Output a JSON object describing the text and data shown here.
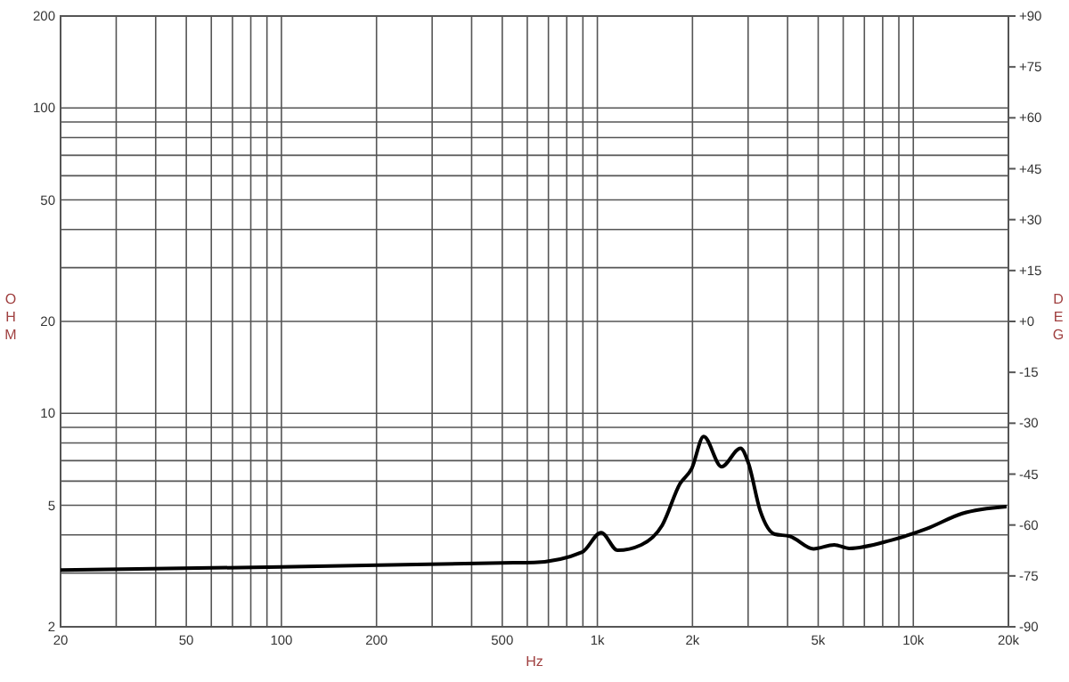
{
  "chart_data": {
    "type": "line",
    "xlabel": "Hz",
    "ylabel": "OHM",
    "y2label": "DEG",
    "log": "xy",
    "grid": true,
    "marker": "none",
    "line_style": "solid",
    "xlim": [
      20,
      20000
    ],
    "ylim": [
      2,
      200
    ],
    "y2lim": [
      -90,
      90
    ],
    "xticks": [
      20,
      {
        "value": 30,
        "label": null
      },
      {
        "value": 40,
        "label": null
      },
      50,
      {
        "value": 60,
        "label": null
      },
      {
        "value": 70,
        "label": null
      },
      {
        "value": 80,
        "label": null
      },
      {
        "value": 90,
        "label": null
      },
      100,
      200,
      {
        "value": 300,
        "label": null
      },
      {
        "value": 400,
        "label": null
      },
      500,
      {
        "value": 600,
        "label": null
      },
      {
        "value": 700,
        "label": null
      },
      {
        "value": 800,
        "label": null
      },
      {
        "value": 900,
        "label": null
      },
      {
        "value": 1000,
        "label": "1k"
      },
      {
        "value": 2000,
        "label": "2k"
      },
      {
        "value": 3000,
        "label": null
      },
      {
        "value": 4000,
        "label": null
      },
      {
        "value": 5000,
        "label": "5k"
      },
      {
        "value": 6000,
        "label": null
      },
      {
        "value": 7000,
        "label": null
      },
      {
        "value": 8000,
        "label": null
      },
      {
        "value": 9000,
        "label": null
      },
      {
        "value": 10000,
        "label": "10k"
      },
      {
        "value": 20000,
        "label": "20k"
      }
    ],
    "yticks": [
      2,
      {
        "value": 3,
        "label": null
      },
      {
        "value": 4,
        "label": null
      },
      5,
      {
        "value": 6,
        "label": null
      },
      {
        "value": 7,
        "label": null
      },
      {
        "value": 8,
        "label": null
      },
      {
        "value": 9,
        "label": null
      },
      10,
      20,
      {
        "value": 30,
        "label": null
      },
      {
        "value": 40,
        "label": null
      },
      50,
      {
        "value": 60,
        "label": null
      },
      {
        "value": 70,
        "label": null
      },
      {
        "value": 80,
        "label": null
      },
      {
        "value": 90,
        "label": null
      },
      100,
      200
    ],
    "y2ticks": [
      -90,
      -75,
      -60,
      -45,
      -30,
      -15,
      {
        "value": 0,
        "label": "+0"
      },
      {
        "value": 15,
        "label": "+15"
      },
      {
        "value": 30,
        "label": "+30"
      },
      {
        "value": 45,
        "label": "+45"
      },
      {
        "value": 60,
        "label": "+60"
      },
      {
        "value": 75,
        "label": "+75"
      },
      {
        "value": 90,
        "label": "+90"
      }
    ],
    "series": [
      {
        "color": "#000000",
        "x": [
          20,
          100,
          500,
          632,
          895,
          1028,
          1159,
          1377,
          1604,
          1826,
          1990,
          2170,
          2472,
          2840,
          3006,
          3276,
          3646,
          4063,
          4832,
          5620,
          6270,
          8490,
          11010,
          14280,
          19740
        ],
        "values": [
          3.07,
          3.14,
          3.24,
          3.25,
          3.51,
          4.07,
          3.56,
          3.71,
          4.3,
          5.88,
          6.6,
          8.4,
          6.69,
          7.69,
          6.87,
          4.8,
          4.02,
          3.96,
          3.6,
          3.71,
          3.61,
          3.84,
          4.19,
          4.7,
          4.95
        ]
      }
    ]
  }
}
